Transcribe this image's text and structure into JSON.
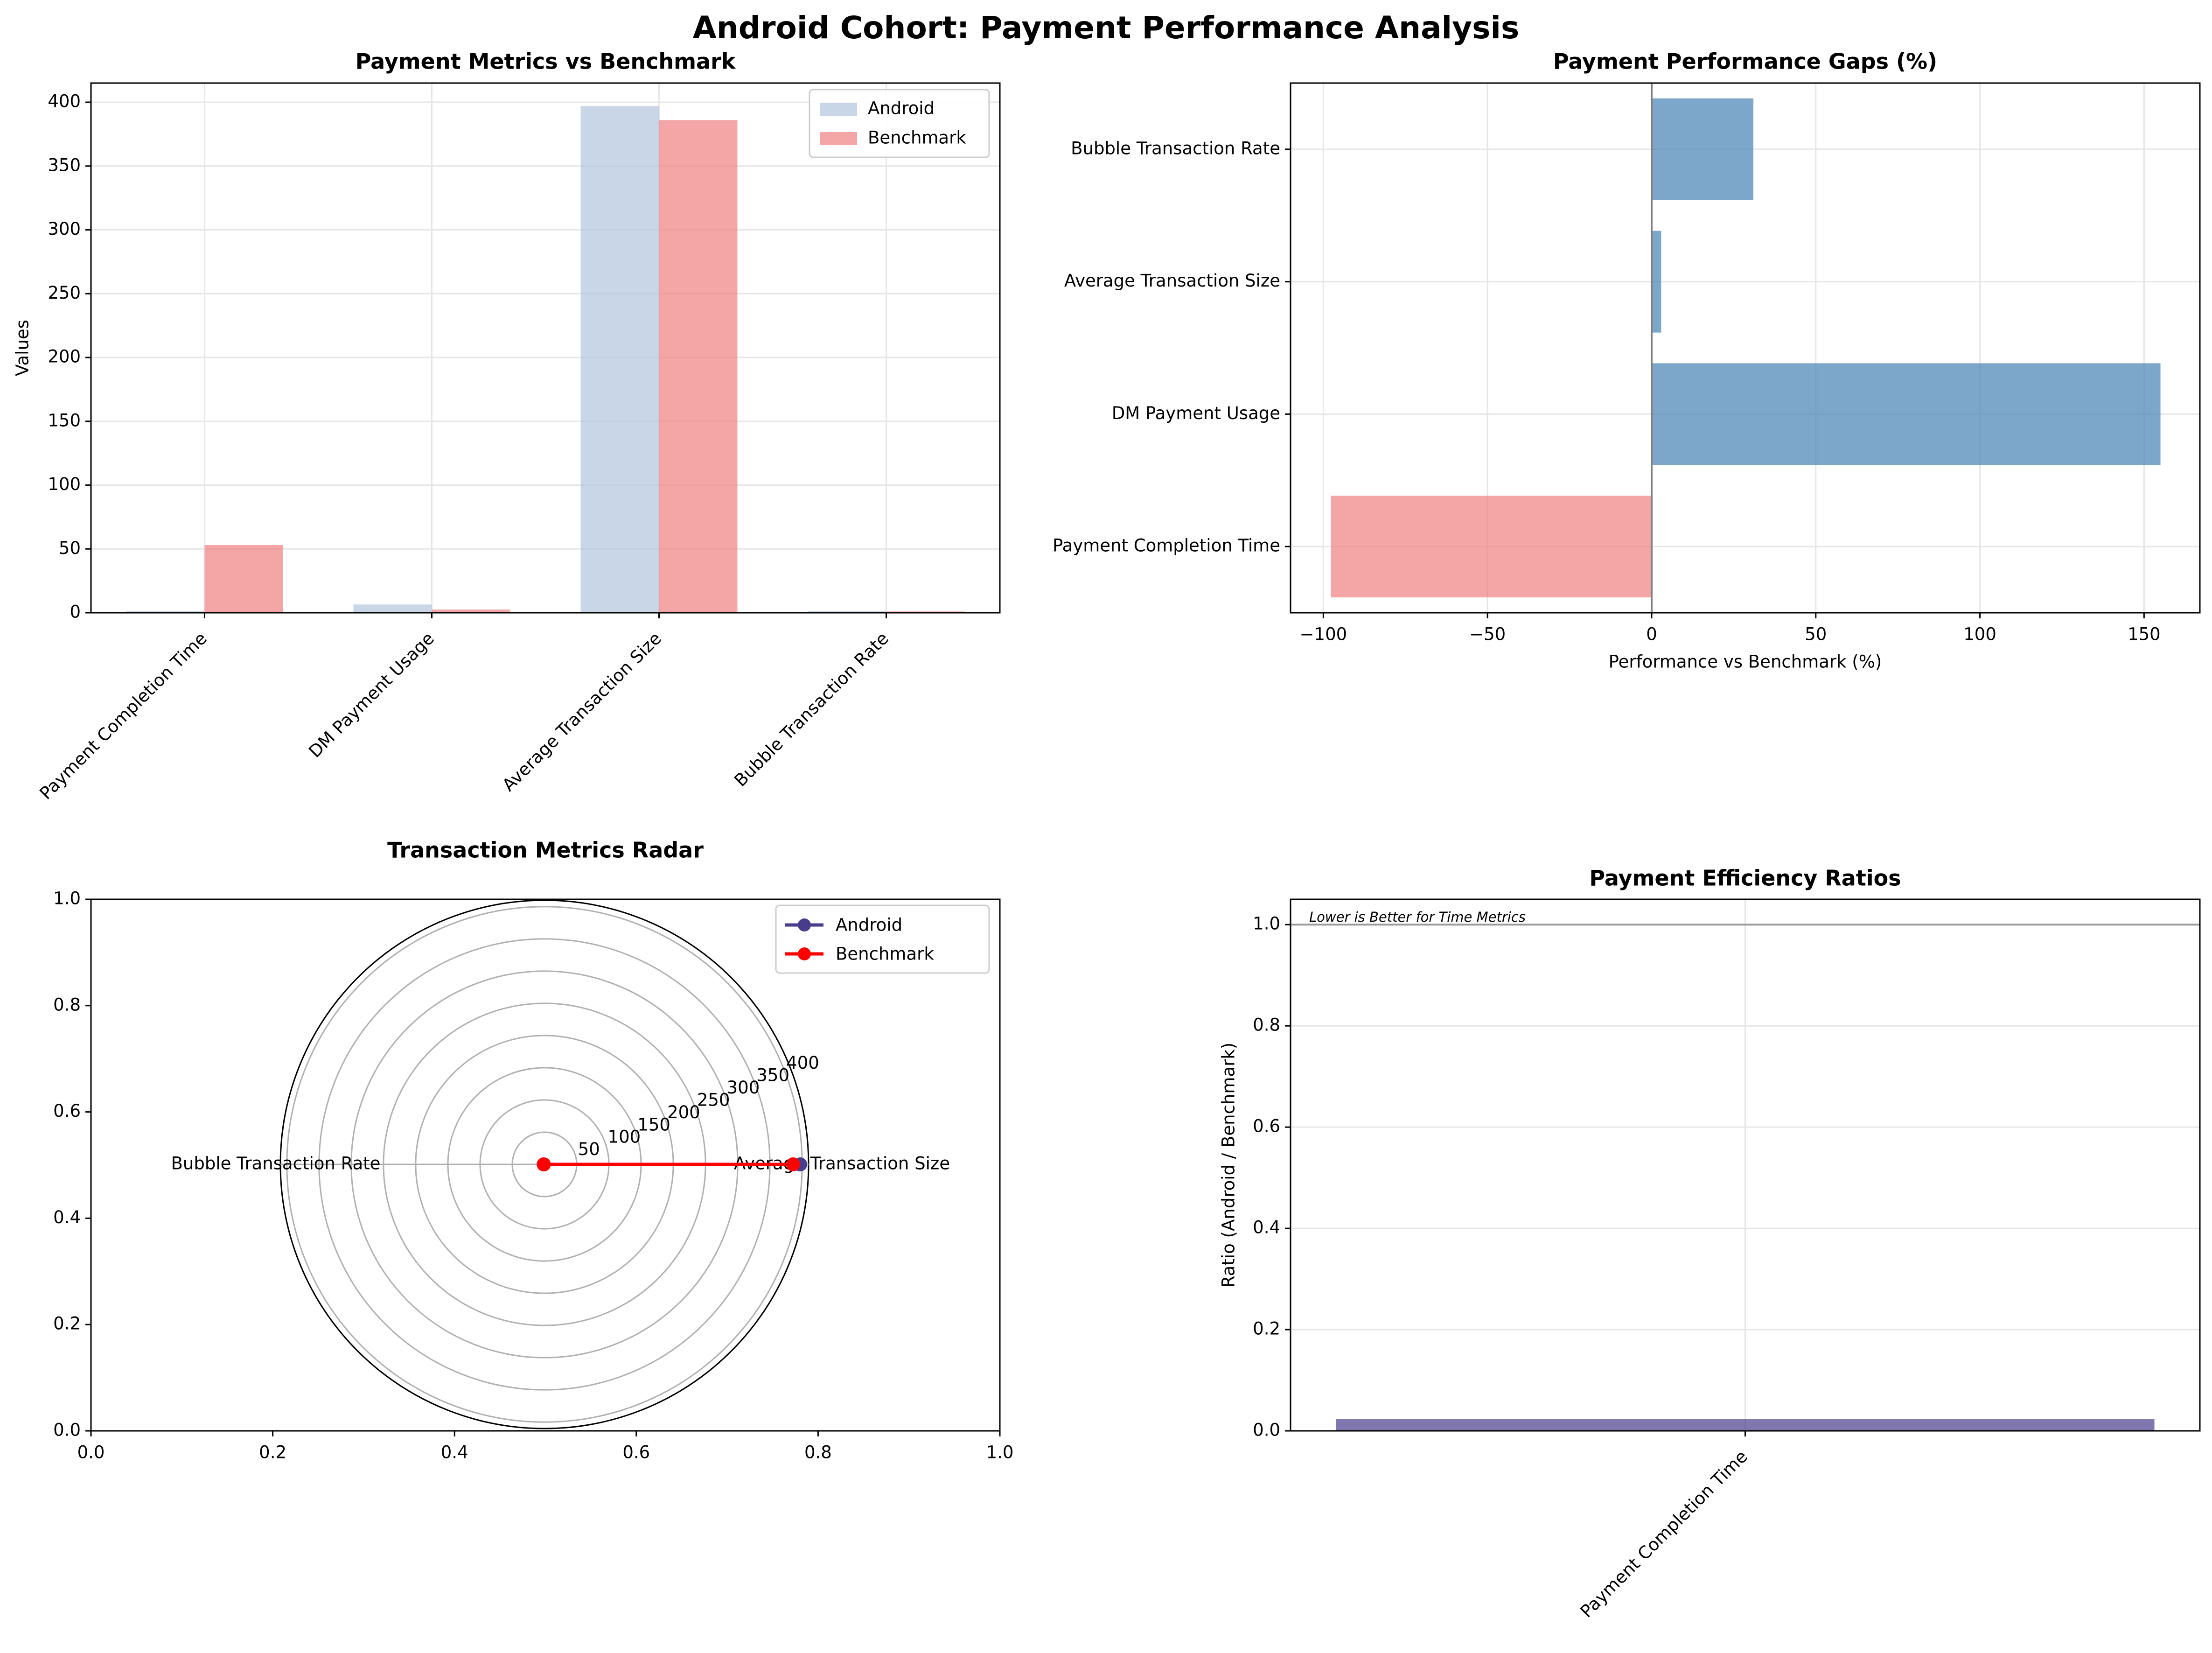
{
  "figure": {
    "title": "Android Cohort: Payment Performance Analysis"
  },
  "colors": {
    "android_light": "#b0c4de",
    "benchmark_light": "#f08080",
    "gap_positive": "#4682b4",
    "gap_negative": "#f08080",
    "radar_android": "#483d8b",
    "radar_benchmark": "#ff0000",
    "ratio_bar": "#483d8b",
    "grid": "#e6e6e6"
  },
  "chart_data": [
    {
      "id": "metrics_vs_benchmark",
      "type": "bar",
      "title": "Payment Metrics vs Benchmark",
      "xlabel": "",
      "ylabel": "Values",
      "categories": [
        "Payment Completion Time",
        "DM Payment Usage",
        "Average Transaction Size",
        "Bubble Transaction Rate"
      ],
      "series": [
        {
          "name": "Android",
          "values": [
            1.2,
            6.5,
            397,
            1.3
          ]
        },
        {
          "name": "Benchmark",
          "values": [
            53,
            2.5,
            386,
            1.0
          ]
        }
      ],
      "ylim": [
        0,
        415
      ],
      "yticks": [
        0,
        50,
        100,
        150,
        200,
        250,
        300,
        350,
        400
      ],
      "grid": true,
      "legend": "top-right"
    },
    {
      "id": "performance_gaps",
      "type": "bar",
      "orientation": "horizontal",
      "title": "Payment Performance Gaps (%)",
      "xlabel": "Performance vs Benchmark (%)",
      "ylabel": "",
      "categories": [
        "Payment Completion Time",
        "DM Payment Usage",
        "Average Transaction Size",
        "Bubble Transaction Rate"
      ],
      "values": [
        -97.7,
        155,
        2.9,
        31
      ],
      "xlim": [
        -110,
        167
      ],
      "xticks": [
        -100,
        -50,
        0,
        50,
        100,
        150
      ],
      "xtick_labels": [
        "−100",
        "−50",
        "0",
        "50",
        "100",
        "150"
      ],
      "grid": true
    },
    {
      "id": "transaction_radar",
      "type": "radar",
      "title": "Transaction Metrics Radar",
      "axes": [
        "Average Transaction Size",
        "Bubble Transaction Rate"
      ],
      "series": [
        {
          "name": "Android",
          "values": [
            397,
            1.3
          ]
        },
        {
          "name": "Benchmark",
          "values": [
            386,
            1.0
          ]
        }
      ],
      "rlim": [
        0,
        410
      ],
      "rticks": [
        50,
        100,
        150,
        200,
        250,
        300,
        350,
        400
      ],
      "frame_xticks": [
        "0.0",
        "0.2",
        "0.4",
        "0.6",
        "0.8",
        "1.0"
      ],
      "frame_yticks": [
        "0.0",
        "0.2",
        "0.4",
        "0.6",
        "0.8",
        "1.0"
      ],
      "legend": "top-right"
    },
    {
      "id": "efficiency_ratios",
      "type": "bar",
      "title": "Payment Efficiency Ratios",
      "xlabel": "",
      "ylabel": "Ratio (Android / Benchmark)",
      "categories": [
        "Payment Completion Time"
      ],
      "values": [
        0.023
      ],
      "reference_line": 1.0,
      "annotation": "Lower is Better for Time Metrics",
      "ylim": [
        0,
        1.05
      ],
      "yticks": [
        0.0,
        0.2,
        0.4,
        0.6,
        0.8,
        1.0
      ],
      "ytick_labels": [
        "0.0",
        "0.2",
        "0.4",
        "0.6",
        "0.8",
        "1.0"
      ],
      "grid": true
    }
  ]
}
